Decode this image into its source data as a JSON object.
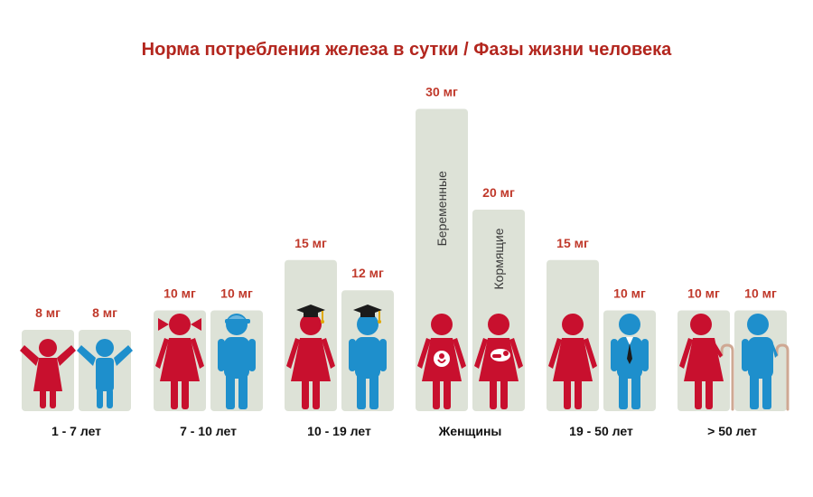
{
  "title": "Норма потребления железа в сутки / Фазы жизни человека",
  "colors": {
    "female": "#c8102e",
    "male": "#1e8fcc",
    "bar": "#dde2d7",
    "value": "#c0392b"
  },
  "chart_data": {
    "type": "bar",
    "title": "Норма потребления железа в сутки / Фазы жизни человека",
    "unit": "мг",
    "ylim": [
      0,
      30
    ],
    "groups": [
      {
        "label": "1 - 7  лет",
        "bars": [
          {
            "value": 8,
            "value_label": "8 мг",
            "figure": "girl-child",
            "gender": "female"
          },
          {
            "value": 8,
            "value_label": "8 мг",
            "figure": "boy-child",
            "gender": "male"
          }
        ]
      },
      {
        "label": "7 - 10 лет",
        "bars": [
          {
            "value": 10,
            "value_label": "10 мг",
            "figure": "girl-pigtails",
            "gender": "female"
          },
          {
            "value": 10,
            "value_label": "10 мг",
            "figure": "boy-cap",
            "gender": "male"
          }
        ]
      },
      {
        "label": "10 - 19 лет",
        "bars": [
          {
            "value": 15,
            "value_label": "15 мг",
            "figure": "girl-graduate",
            "gender": "female"
          },
          {
            "value": 12,
            "value_label": "12 мг",
            "figure": "boy-graduate",
            "gender": "male"
          }
        ]
      },
      {
        "label": "Женщины",
        "bars": [
          {
            "value": 30,
            "value_label": "30 мг",
            "figure": "pregnant-woman",
            "gender": "female",
            "note": "Беременные"
          },
          {
            "value": 20,
            "value_label": "20 мг",
            "figure": "nursing-woman",
            "gender": "female",
            "note": "Кормящие"
          }
        ]
      },
      {
        "label": "19 - 50 лет",
        "bars": [
          {
            "value": 15,
            "value_label": "15 мг",
            "figure": "woman",
            "gender": "female"
          },
          {
            "value": 10,
            "value_label": "10 мг",
            "figure": "man-tie",
            "gender": "male"
          }
        ]
      },
      {
        "label": "> 50 лет",
        "bars": [
          {
            "value": 10,
            "value_label": "10 мг",
            "figure": "old-woman-cane",
            "gender": "female"
          },
          {
            "value": 10,
            "value_label": "10 мг",
            "figure": "old-man-cane",
            "gender": "male"
          }
        ]
      }
    ]
  }
}
